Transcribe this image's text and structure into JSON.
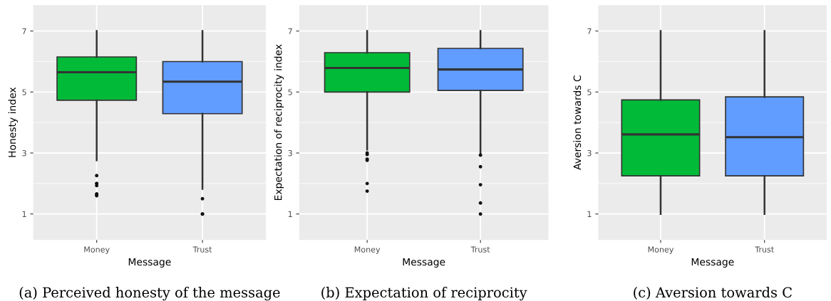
{
  "chart_data": [
    {
      "type": "box",
      "categories": [
        "Money",
        "Trust"
      ],
      "xlabel": "Message",
      "ylabel": "Honesty index",
      "ylim": [
        0.15,
        7.85
      ],
      "yticks": [
        1,
        3,
        5,
        7
      ],
      "grid": true,
      "colors": [
        "#00ba38",
        "#619cff"
      ],
      "boxes": [
        {
          "low": 2.76,
          "q1": 4.73,
          "median": 5.65,
          "q3": 6.15,
          "high": 7,
          "outliers": [
            2.26,
            2.0,
            2.0,
            1.93,
            1.66,
            1.63,
            1.6
          ]
        },
        {
          "low": 1.82,
          "q1": 4.29,
          "median": 5.34,
          "q3": 6.0,
          "high": 7,
          "outliers": [
            1.5,
            1.0,
            1.0
          ]
        }
      ],
      "annotations": [
        "(a) Perceived honesty of the message"
      ]
    },
    {
      "type": "box",
      "categories": [
        "Money",
        "Trust"
      ],
      "xlabel": "Message",
      "ylabel": "Expectation of reciprocity index",
      "ylim": [
        0.15,
        7.85
      ],
      "yticks": [
        1,
        3,
        5,
        7
      ],
      "grid": true,
      "colors": [
        "#00ba38",
        "#619cff"
      ],
      "boxes": [
        {
          "low": 3.11,
          "q1": 5.0,
          "median": 5.79,
          "q3": 6.29,
          "high": 7,
          "outliers": [
            3.0,
            2.95,
            2.8,
            2.76,
            2.0,
            1.75
          ]
        },
        {
          "low": 3.0,
          "q1": 5.05,
          "median": 5.74,
          "q3": 6.43,
          "high": 7,
          "outliers": [
            2.93,
            2.55,
            1.96,
            1.36,
            1.0
          ]
        }
      ],
      "annotations": [
        "(b) Expectation of reciprocity"
      ]
    },
    {
      "type": "box",
      "categories": [
        "Money",
        "Trust"
      ],
      "xlabel": "Message",
      "ylabel": "Aversion towards C",
      "ylim": [
        0.15,
        7.85
      ],
      "yticks": [
        1,
        3,
        5,
        7
      ],
      "grid": true,
      "colors": [
        "#00ba38",
        "#619cff"
      ],
      "boxes": [
        {
          "low": 1,
          "q1": 2.25,
          "median": 3.61,
          "q3": 4.74,
          "high": 7
        },
        {
          "low": 1,
          "q1": 2.25,
          "median": 3.52,
          "q3": 4.84,
          "high": 7
        }
      ],
      "annotations": [
        "(c) Aversion towards C"
      ]
    }
  ]
}
